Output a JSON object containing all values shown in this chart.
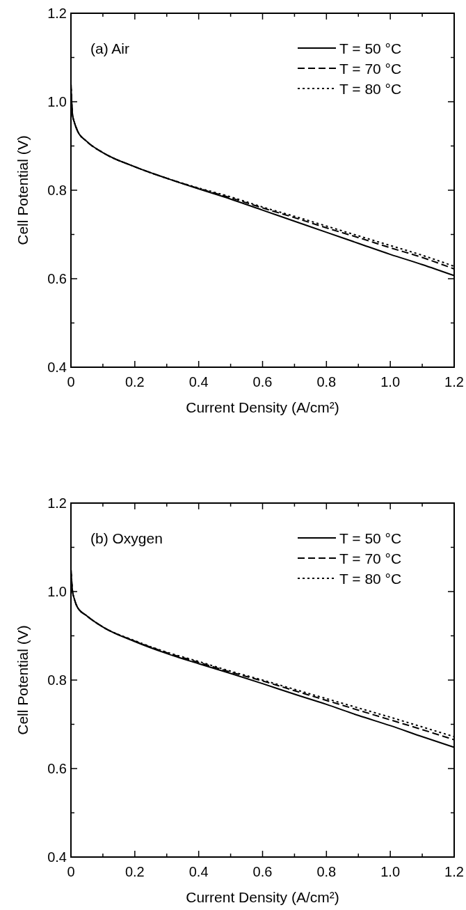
{
  "chart_data": [
    {
      "type": "line",
      "annotations": [
        "(a) Air"
      ],
      "xlabel": "Current Density (A/cm²)",
      "ylabel": "Cell Potential (V)",
      "xlim": [
        0,
        1.2
      ],
      "ylim": [
        0.4,
        1.2
      ],
      "xticks": [
        0,
        {
          "value": 0.1,
          "label": null
        },
        0.2,
        {
          "value": 0.3,
          "label": null
        },
        0.4,
        {
          "value": 0.5,
          "label": null
        },
        0.6,
        {
          "value": 0.7,
          "label": null
        },
        0.8,
        {
          "value": 0.9,
          "label": null
        },
        {
          "value": 1,
          "label": "1.0"
        },
        {
          "value": 1.1,
          "label": null
        },
        1.2
      ],
      "yticks": [
        0.4,
        {
          "value": 0.5,
          "label": null
        },
        0.6,
        {
          "value": 0.7,
          "label": null
        },
        0.8,
        {
          "value": 0.9,
          "label": null
        },
        {
          "value": 1,
          "label": "1.0"
        },
        {
          "value": 1.1,
          "label": null
        },
        1.2
      ],
      "legend": "top right",
      "grid": false,
      "x": [
        0,
        0.005,
        0.01,
        0.02,
        0.05,
        0.1,
        0.2,
        0.3,
        0.4,
        0.5,
        0.6,
        0.7,
        0.8,
        0.9,
        1.0,
        1.1,
        1.2
      ],
      "series": [
        {
          "name": "T = 50 °C",
          "color": "#000000",
          "line_style": "solid",
          "values": [
            1.04,
            0.97,
            0.955,
            0.935,
            0.91,
            0.885,
            0.853,
            0.827,
            0.803,
            0.78,
            0.755,
            0.73,
            0.705,
            0.68,
            0.655,
            0.632,
            0.607
          ]
        },
        {
          "name": "T = 70 °C",
          "color": "#000000",
          "line_style": "dashed",
          "values": [
            1.04,
            0.97,
            0.955,
            0.935,
            0.91,
            0.885,
            0.853,
            0.827,
            0.804,
            0.783,
            0.76,
            0.738,
            0.715,
            0.693,
            0.67,
            0.648,
            0.622
          ]
        },
        {
          "name": "T = 80 °C",
          "color": "#000000",
          "line_style": "dotted",
          "values": [
            1.04,
            0.97,
            0.955,
            0.935,
            0.91,
            0.885,
            0.853,
            0.827,
            0.805,
            0.785,
            0.762,
            0.741,
            0.719,
            0.697,
            0.675,
            0.653,
            0.628
          ]
        }
      ]
    },
    {
      "type": "line",
      "annotations": [
        "(b) Oxygen"
      ],
      "xlabel": "Current Density (A/cm²)",
      "ylabel": "Cell Potential (V)",
      "xlim": [
        0,
        1.2
      ],
      "ylim": [
        0.4,
        1.2
      ],
      "xticks": [
        0,
        {
          "value": 0.1,
          "label": null
        },
        0.2,
        {
          "value": 0.3,
          "label": null
        },
        0.4,
        {
          "value": 0.5,
          "label": null
        },
        0.6,
        {
          "value": 0.7,
          "label": null
        },
        0.8,
        {
          "value": 0.9,
          "label": null
        },
        {
          "value": 1,
          "label": "1.0"
        },
        {
          "value": 1.1,
          "label": null
        },
        1.2
      ],
      "yticks": [
        0.4,
        {
          "value": 0.5,
          "label": null
        },
        0.6,
        {
          "value": 0.7,
          "label": null
        },
        0.8,
        {
          "value": 0.9,
          "label": null
        },
        {
          "value": 1,
          "label": "1.0"
        },
        {
          "value": 1.1,
          "label": null
        },
        1.2
      ],
      "legend": "top right",
      "grid": false,
      "x": [
        0,
        0.005,
        0.01,
        0.02,
        0.05,
        0.1,
        0.2,
        0.3,
        0.4,
        0.5,
        0.6,
        0.7,
        0.8,
        0.9,
        1.0,
        1.1,
        1.2
      ],
      "series": [
        {
          "name": "T = 50 °C",
          "color": "#000000",
          "line_style": "solid",
          "values": [
            1.05,
            1.0,
            0.985,
            0.965,
            0.945,
            0.92,
            0.887,
            0.86,
            0.837,
            0.815,
            0.792,
            0.768,
            0.745,
            0.72,
            0.697,
            0.672,
            0.648
          ]
        },
        {
          "name": "T = 70 °C",
          "color": "#000000",
          "line_style": "dashed",
          "values": [
            1.05,
            1.0,
            0.985,
            0.965,
            0.945,
            0.92,
            0.888,
            0.862,
            0.84,
            0.818,
            0.798,
            0.776,
            0.754,
            0.732,
            0.71,
            0.688,
            0.665
          ]
        },
        {
          "name": "T = 80 °C",
          "color": "#000000",
          "line_style": "dotted",
          "values": [
            1.05,
            1.0,
            0.985,
            0.965,
            0.945,
            0.92,
            0.889,
            0.863,
            0.842,
            0.82,
            0.8,
            0.779,
            0.758,
            0.737,
            0.716,
            0.694,
            0.672
          ]
        }
      ]
    }
  ]
}
